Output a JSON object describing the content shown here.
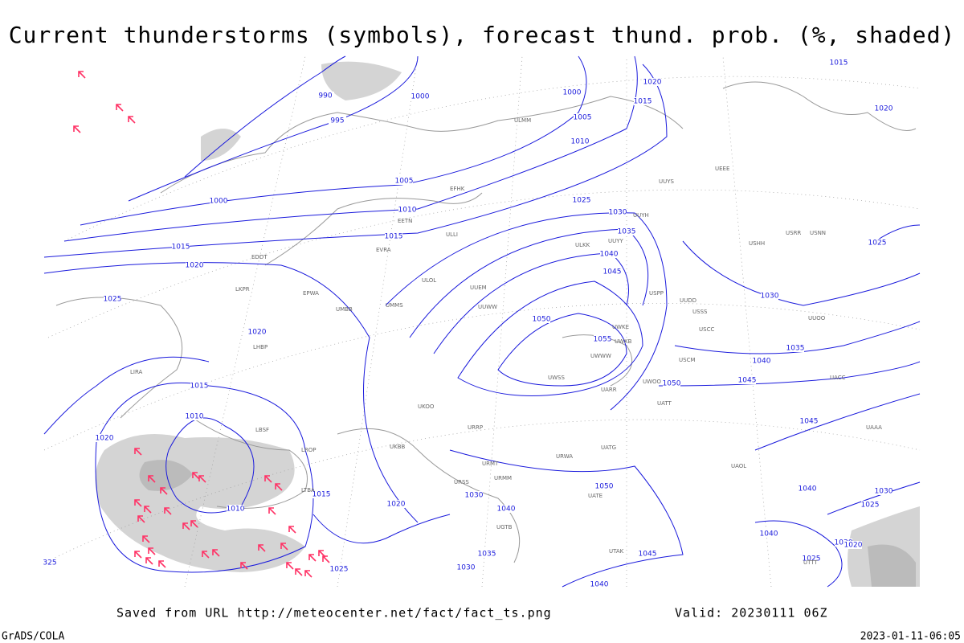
{
  "header": {
    "title": "Current thunderstorms (symbols), forecast thund. prob. (%, shaded)"
  },
  "footer": {
    "source": "Saved from URL http://meteocenter.net/fact/fact_ts.png",
    "valid": "Valid: 20230111 06Z",
    "software": "GrADS/COLA",
    "timestamp": "2023-01-11-06:05"
  },
  "isobar_labels": [
    990,
    995,
    1000,
    1000,
    1005,
    1010,
    1005,
    1000,
    1010,
    1015,
    1015,
    1020,
    1025,
    1030,
    1035,
    1040,
    1045,
    1050,
    1055,
    1050,
    1045,
    1040,
    1035,
    1030,
    1025,
    1020,
    1015,
    1015,
    1020,
    1020,
    1025,
    1015,
    1010,
    1020,
    1010,
    1015,
    1020,
    1030,
    1040,
    1050,
    1045,
    1040,
    1035,
    1030,
    1025,
    1045,
    1040,
    1030,
    1025,
    1040,
    1030,
    1025,
    1020,
    325
  ],
  "stations": [
    "ULMM",
    "ULLI",
    "ULOL",
    "UUEM",
    "UUWW",
    "UUYY",
    "UUYH",
    "ULKK",
    "UUYS",
    "USSS",
    "USCC",
    "UWKE",
    "UWWW",
    "UWKB",
    "UWSS",
    "UARR",
    "UATT",
    "UWOO",
    "USCM",
    "UATG",
    "URWA",
    "URSS",
    "URMM",
    "URMT",
    "URRP",
    "UKBB",
    "UKOO",
    "UMMS",
    "UMBB",
    "EVRA",
    "EETN",
    "EFHK",
    "USRR",
    "USNN",
    "USHH",
    "UEEE",
    "UACC",
    "UAAA",
    "UTTT",
    "UTAK",
    "LIRA",
    "LBSF",
    "LROP",
    "LTBA",
    "EPWA",
    "EDDT",
    "LKPR",
    "LHBP",
    "UUDD",
    "USPP",
    "UUOO",
    "UAOL",
    "UATE",
    "UGTB"
  ]
}
